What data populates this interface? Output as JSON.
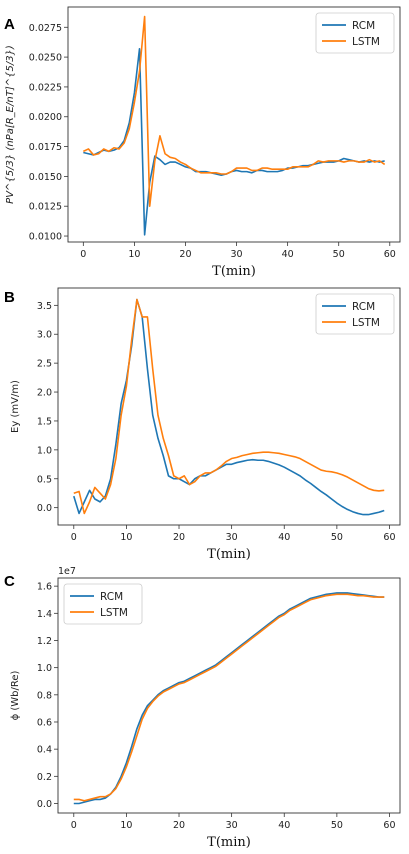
{
  "chart_data": [
    {
      "type": "line",
      "panel_label": "A",
      "ylabel": "PV^{5/3} (nPa[R_E/nT]^{5/3})",
      "xlabel": "T(min)",
      "xlim": [
        -3,
        62
      ],
      "ylim": [
        0.0095,
        0.0292
      ],
      "xticks": [
        0,
        10,
        20,
        30,
        40,
        50,
        60
      ],
      "xtick_labels": [
        "0",
        "10",
        "20",
        "30",
        "40",
        "50",
        "60"
      ],
      "yticks": [
        0.01,
        0.0125,
        0.015,
        0.0175,
        0.02,
        0.0225,
        0.025,
        0.0275
      ],
      "ytick_labels": [
        "0.0100",
        "0.0125",
        "0.0150",
        "0.0175",
        "0.0200",
        "0.0225",
        "0.0250",
        "0.0275"
      ],
      "legend": "top-right",
      "grid": false,
      "x": [
        0,
        1,
        2,
        3,
        4,
        5,
        6,
        7,
        8,
        9,
        10,
        11,
        12,
        13,
        14,
        15,
        16,
        17,
        18,
        19,
        20,
        21,
        22,
        23,
        24,
        25,
        26,
        27,
        28,
        29,
        30,
        31,
        32,
        33,
        34,
        35,
        36,
        37,
        38,
        39,
        40,
        41,
        42,
        43,
        44,
        45,
        46,
        47,
        48,
        49,
        50,
        51,
        52,
        53,
        54,
        55,
        56,
        57,
        58,
        59
      ],
      "series": [
        {
          "name": "RCM",
          "color": "#1f77b4",
          "values": [
            0.017,
            0.0169,
            0.0168,
            0.017,
            0.0172,
            0.0171,
            0.0172,
            0.0174,
            0.018,
            0.0195,
            0.022,
            0.0257,
            0.0101,
            0.0145,
            0.0167,
            0.0164,
            0.016,
            0.0162,
            0.0162,
            0.016,
            0.0158,
            0.0157,
            0.0154,
            0.0154,
            0.0154,
            0.0153,
            0.0152,
            0.0151,
            0.0152,
            0.0154,
            0.0155,
            0.0154,
            0.0154,
            0.0153,
            0.0155,
            0.0155,
            0.0154,
            0.0154,
            0.0154,
            0.0155,
            0.0157,
            0.0157,
            0.0158,
            0.0159,
            0.0159,
            0.016,
            0.0161,
            0.0162,
            0.0162,
            0.0162,
            0.0163,
            0.0165,
            0.0164,
            0.0163,
            0.0162,
            0.0163,
            0.0162,
            0.0163,
            0.0162,
            0.0163
          ]
        },
        {
          "name": "LSTM",
          "color": "#ff7f0e",
          "values": [
            0.0171,
            0.0173,
            0.0168,
            0.0169,
            0.0173,
            0.0171,
            0.0174,
            0.0173,
            0.0178,
            0.019,
            0.0212,
            0.0238,
            0.0284,
            0.0125,
            0.0163,
            0.0184,
            0.0169,
            0.0166,
            0.0165,
            0.0162,
            0.016,
            0.0157,
            0.0155,
            0.0153,
            0.0153,
            0.0153,
            0.0153,
            0.0152,
            0.0152,
            0.0154,
            0.0157,
            0.0157,
            0.0157,
            0.0155,
            0.0155,
            0.0157,
            0.0157,
            0.0156,
            0.0156,
            0.0156,
            0.0156,
            0.0158,
            0.0158,
            0.0158,
            0.0158,
            0.016,
            0.0163,
            0.0162,
            0.0163,
            0.0163,
            0.0163,
            0.0162,
            0.0163,
            0.0163,
            0.0162,
            0.0162,
            0.0164,
            0.0162,
            0.0163,
            0.016
          ]
        }
      ]
    },
    {
      "type": "line",
      "panel_label": "B",
      "ylabel": "Ey (mV/m)",
      "xlabel": "T(min)",
      "xlim": [
        -3,
        62
      ],
      "ylim": [
        -0.3,
        3.8
      ],
      "xticks": [
        0,
        10,
        20,
        30,
        40,
        50,
        60
      ],
      "xtick_labels": [
        "0",
        "10",
        "20",
        "30",
        "40",
        "50",
        "60"
      ],
      "yticks": [
        0.0,
        0.5,
        1.0,
        1.5,
        2.0,
        2.5,
        3.0,
        3.5
      ],
      "ytick_labels": [
        "0.0",
        "0.5",
        "1.0",
        "1.5",
        "2.0",
        "2.5",
        "3.0",
        "3.5"
      ],
      "legend": "top-right",
      "grid": false,
      "x": [
        0,
        1,
        2,
        3,
        4,
        5,
        6,
        7,
        8,
        9,
        10,
        11,
        12,
        13,
        14,
        15,
        16,
        17,
        18,
        19,
        20,
        21,
        22,
        23,
        24,
        25,
        26,
        27,
        28,
        29,
        30,
        31,
        32,
        33,
        34,
        35,
        36,
        37,
        38,
        39,
        40,
        41,
        42,
        43,
        44,
        45,
        46,
        47,
        48,
        49,
        50,
        51,
        52,
        53,
        54,
        55,
        56,
        57,
        58,
        59
      ],
      "series": [
        {
          "name": "RCM",
          "color": "#1f77b4",
          "values": [
            0.2,
            -0.1,
            0.1,
            0.3,
            0.15,
            0.1,
            0.2,
            0.5,
            1.1,
            1.8,
            2.2,
            2.8,
            3.6,
            3.3,
            2.4,
            1.6,
            1.2,
            0.9,
            0.55,
            0.5,
            0.5,
            0.45,
            0.4,
            0.5,
            0.55,
            0.55,
            0.6,
            0.65,
            0.7,
            0.75,
            0.75,
            0.78,
            0.8,
            0.82,
            0.83,
            0.82,
            0.82,
            0.8,
            0.77,
            0.74,
            0.7,
            0.65,
            0.6,
            0.55,
            0.48,
            0.42,
            0.35,
            0.28,
            0.22,
            0.15,
            0.08,
            0.02,
            -0.03,
            -0.07,
            -0.1,
            -0.12,
            -0.12,
            -0.1,
            -0.08,
            -0.05
          ]
        },
        {
          "name": "LSTM",
          "color": "#ff7f0e",
          "values": [
            0.25,
            0.28,
            -0.1,
            0.1,
            0.35,
            0.25,
            0.15,
            0.4,
            0.85,
            1.6,
            2.1,
            2.9,
            3.6,
            3.3,
            3.3,
            2.4,
            1.6,
            1.2,
            0.9,
            0.55,
            0.5,
            0.55,
            0.4,
            0.45,
            0.55,
            0.6,
            0.6,
            0.65,
            0.72,
            0.8,
            0.85,
            0.87,
            0.9,
            0.92,
            0.94,
            0.95,
            0.96,
            0.96,
            0.95,
            0.94,
            0.92,
            0.9,
            0.88,
            0.85,
            0.8,
            0.75,
            0.7,
            0.65,
            0.63,
            0.62,
            0.6,
            0.57,
            0.53,
            0.48,
            0.43,
            0.38,
            0.33,
            0.3,
            0.29,
            0.3
          ]
        }
      ]
    },
    {
      "type": "line",
      "panel_label": "C",
      "ylabel": "ϕ (Wb/Re)",
      "offset_label": "1e7",
      "xlabel": "T(min)",
      "xlim": [
        -3,
        62
      ],
      "ylim": [
        -0.07,
        1.66
      ],
      "xticks": [
        0,
        10,
        20,
        30,
        40,
        50,
        60
      ],
      "xtick_labels": [
        "0",
        "10",
        "20",
        "30",
        "40",
        "50",
        "60"
      ],
      "yticks": [
        0.0,
        0.2,
        0.4,
        0.6,
        0.8,
        1.0,
        1.2,
        1.4,
        1.6
      ],
      "ytick_labels": [
        "0.0",
        "0.2",
        "0.4",
        "0.6",
        "0.8",
        "1.0",
        "1.2",
        "1.4",
        "1.6"
      ],
      "legend": "top-left",
      "grid": false,
      "x": [
        0,
        1,
        2,
        3,
        4,
        5,
        6,
        7,
        8,
        9,
        10,
        11,
        12,
        13,
        14,
        15,
        16,
        17,
        18,
        19,
        20,
        21,
        22,
        23,
        24,
        25,
        26,
        27,
        28,
        29,
        30,
        31,
        32,
        33,
        34,
        35,
        36,
        37,
        38,
        39,
        40,
        41,
        42,
        43,
        44,
        45,
        46,
        47,
        48,
        49,
        50,
        51,
        52,
        53,
        54,
        55,
        56,
        57,
        58,
        59
      ],
      "series": [
        {
          "name": "RCM",
          "color": "#1f77b4",
          "values": [
            0.0,
            0.0,
            0.01,
            0.02,
            0.03,
            0.03,
            0.04,
            0.07,
            0.12,
            0.2,
            0.3,
            0.42,
            0.55,
            0.65,
            0.72,
            0.76,
            0.8,
            0.83,
            0.85,
            0.87,
            0.89,
            0.9,
            0.92,
            0.94,
            0.96,
            0.98,
            1.0,
            1.02,
            1.05,
            1.08,
            1.11,
            1.14,
            1.17,
            1.2,
            1.23,
            1.26,
            1.29,
            1.32,
            1.35,
            1.38,
            1.4,
            1.43,
            1.45,
            1.47,
            1.49,
            1.51,
            1.52,
            1.53,
            1.54,
            1.545,
            1.55,
            1.55,
            1.55,
            1.545,
            1.54,
            1.535,
            1.53,
            1.525,
            1.52,
            1.52
          ]
        },
        {
          "name": "LSTM",
          "color": "#ff7f0e",
          "values": [
            0.03,
            0.03,
            0.02,
            0.03,
            0.04,
            0.05,
            0.05,
            0.07,
            0.11,
            0.18,
            0.27,
            0.38,
            0.5,
            0.62,
            0.7,
            0.75,
            0.79,
            0.82,
            0.84,
            0.86,
            0.88,
            0.89,
            0.91,
            0.93,
            0.95,
            0.97,
            0.99,
            1.01,
            1.04,
            1.07,
            1.1,
            1.13,
            1.16,
            1.19,
            1.22,
            1.25,
            1.28,
            1.31,
            1.34,
            1.37,
            1.39,
            1.42,
            1.44,
            1.46,
            1.48,
            1.5,
            1.51,
            1.52,
            1.53,
            1.535,
            1.54,
            1.54,
            1.54,
            1.535,
            1.53,
            1.53,
            1.525,
            1.52,
            1.52,
            1.52
          ]
        }
      ]
    }
  ]
}
